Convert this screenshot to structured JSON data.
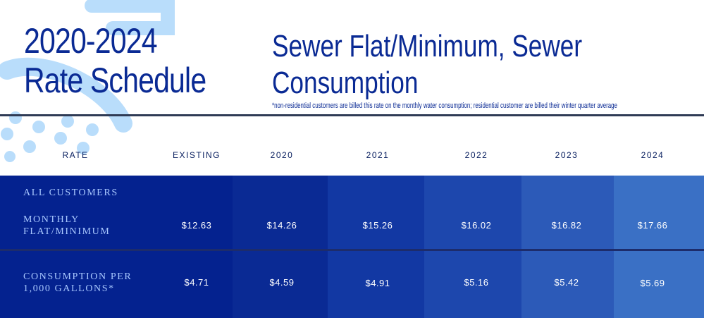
{
  "header": {
    "title_line1": "2020-2024",
    "title_line2": "Rate Schedule",
    "subtitle": "Sewer Flat/Minimum, Sewer Consumption",
    "note": "*non-residential customers are billed this rate on the monthly water consumption; residential customer are billed their winter quarter average"
  },
  "table": {
    "columns": [
      "RATE",
      "EXISTING",
      "2020",
      "2021",
      "2022",
      "2023",
      "2024"
    ],
    "section_label": "ALL CUSTOMERS",
    "rows": [
      {
        "label_line1": "MONTHLY",
        "label_line2": "FLAT/MINIMUM",
        "values": [
          "$12.63",
          "$14.26",
          "$15.26",
          "$16.02",
          "$16.82",
          "$17.66"
        ]
      },
      {
        "label_line1": "CONSUMPTION PER",
        "label_line2": "1,000 GALLONS*",
        "values": [
          "$4.71",
          "$4.59",
          "$4.91",
          "$5.16",
          "$5.42",
          "$5.69"
        ]
      }
    ]
  },
  "colors": {
    "title": "#0a2a94",
    "col_fills": [
      "#04228f",
      "#0a2a94",
      "#1238a3",
      "#1d47ad",
      "#2c5ab8",
      "#3a70c5"
    ],
    "label_text": "#a9c8ff",
    "deco": "#b9ddfb"
  }
}
